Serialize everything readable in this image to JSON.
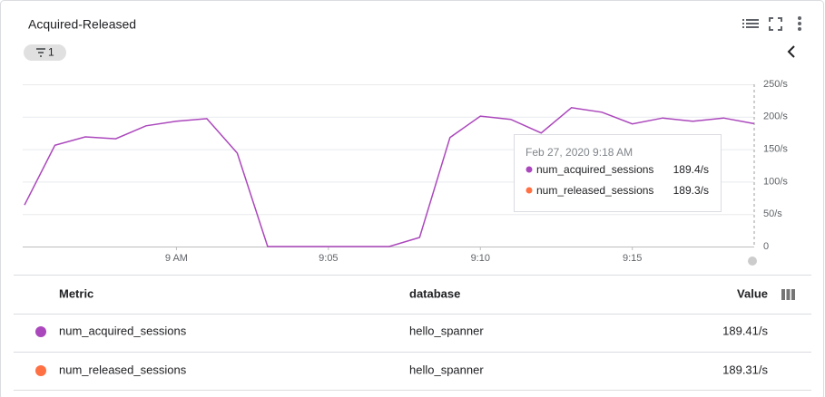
{
  "header": {
    "title": "Acquired-Released",
    "filter_count": "1"
  },
  "chart_data": {
    "type": "line",
    "x": [
      535,
      536,
      537,
      538,
      539,
      540,
      541,
      542,
      543,
      544,
      545,
      546,
      547,
      548,
      549,
      550,
      551,
      552,
      553,
      554,
      555,
      556,
      557,
      558,
      559
    ],
    "values": [
      64,
      156,
      169,
      166,
      186,
      193,
      197,
      144,
      0,
      0,
      0,
      0,
      0,
      14,
      168,
      201,
      196,
      175,
      214,
      207,
      189,
      198,
      193,
      198,
      189.4
    ],
    "color": "#ab47bc",
    "xlim": [
      535,
      559.1
    ],
    "xticks": [
      {
        "value": 540,
        "label": "9 AM"
      },
      {
        "value": 545,
        "label": "9:05"
      },
      {
        "value": 550,
        "label": "9:10"
      },
      {
        "value": 555,
        "label": "9:15"
      }
    ],
    "ylim": [
      0,
      250
    ],
    "yticks": [
      0,
      {
        "value": 50,
        "label": "50/s"
      },
      {
        "value": 100,
        "label": "100/s"
      },
      {
        "value": 150,
        "label": "150/s"
      },
      {
        "value": 200,
        "label": "200/s"
      },
      {
        "value": 250,
        "label": "250/s"
      }
    ],
    "grid": true
  },
  "tooltip": {
    "time": "Feb 27, 2020 9:18 AM",
    "rows": [
      {
        "name": "num_acquired_sessions",
        "value": "189.4/s"
      },
      {
        "name": "num_released_sessions",
        "value": "189.3/s"
      }
    ]
  },
  "table": {
    "headers": [
      "Metric",
      "database",
      "Value"
    ],
    "rows": [
      [
        "num_acquired_sessions",
        "hello_spanner",
        "189.41/s"
      ],
      [
        "num_released_sessions",
        "hello_spanner",
        "189.31/s"
      ]
    ]
  }
}
